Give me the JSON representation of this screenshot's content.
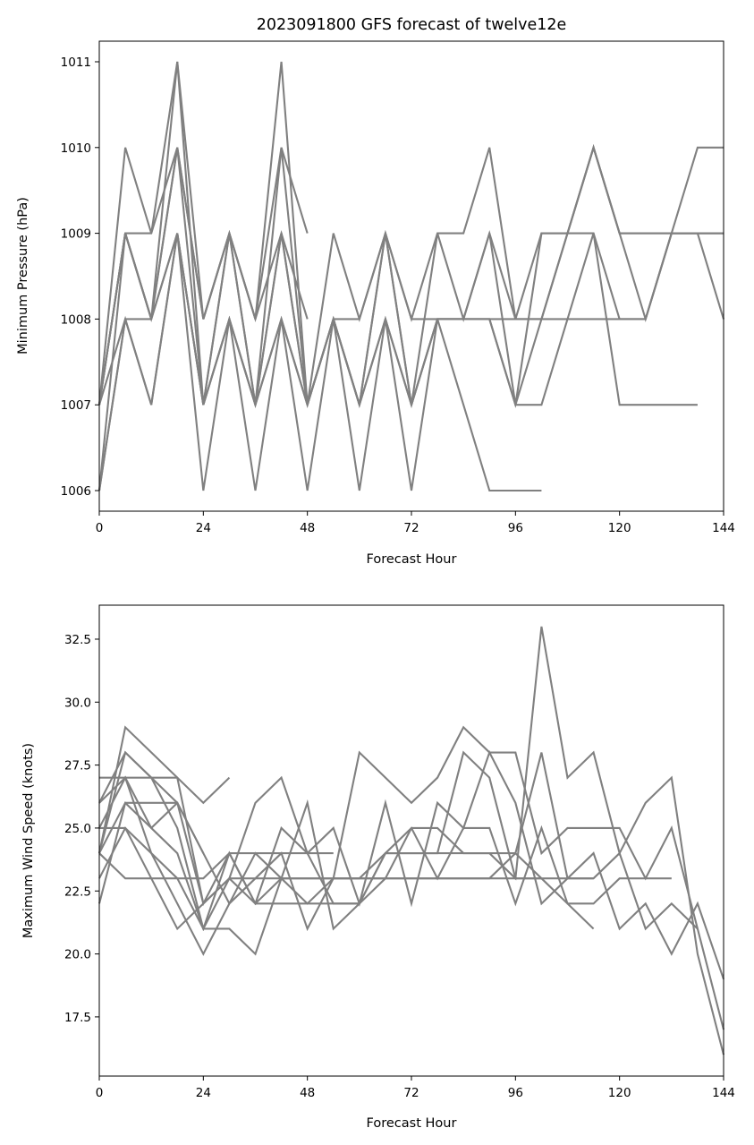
{
  "colors": {
    "series": "#808080",
    "axes": "#000000",
    "background": "#ffffff"
  },
  "chart_data": [
    {
      "type": "line",
      "title": "2023091800 GFS forecast of twelve12e",
      "xlabel": "Forecast Hour",
      "ylabel": "Minimum Pressure (hPa)",
      "xlim": [
        0,
        144
      ],
      "ylim": [
        1005.76,
        1011.24
      ],
      "xticks": [
        0,
        24,
        48,
        72,
        96,
        120,
        144
      ],
      "yticks": [
        1006,
        1007,
        1008,
        1009,
        1010,
        1011
      ],
      "ytick_labels": [
        "1006",
        "1007",
        "1008",
        "1009",
        "1010",
        "1011"
      ],
      "grid": false,
      "legend": false,
      "series": [
        {
          "x": [
            0,
            6,
            12,
            18,
            24,
            30,
            36,
            42,
            48,
            54,
            60,
            66,
            72,
            78,
            84,
            90,
            96,
            102,
            108,
            114,
            120,
            126,
            132,
            138,
            144
          ],
          "y": [
            1007,
            1010,
            1009,
            1011,
            1008,
            1009,
            1008,
            1011,
            1007,
            1008,
            1008,
            1009,
            1008,
            1008,
            1008,
            1008,
            1008,
            1008,
            1008,
            1008,
            1008,
            1008,
            1009,
            1010,
            1010
          ]
        },
        {
          "x": [
            0,
            6,
            12,
            18,
            24,
            30,
            36,
            42,
            48,
            54,
            60,
            66,
            72,
            78,
            84,
            90,
            96,
            102,
            108,
            114,
            120,
            126,
            132,
            138,
            144
          ],
          "y": [
            1007,
            1009,
            1009,
            1010,
            1008,
            1009,
            1008,
            1010,
            1007,
            1009,
            1008,
            1009,
            1008,
            1009,
            1009,
            1010,
            1008,
            1009,
            1009,
            1010,
            1009,
            1009,
            1009,
            1009,
            1009
          ]
        },
        {
          "x": [
            0,
            6,
            12,
            18,
            24,
            30,
            36,
            42,
            48
          ],
          "y": [
            1006,
            1009,
            1008,
            1011,
            1007,
            1009,
            1007,
            1010,
            1009
          ]
        },
        {
          "x": [
            0,
            6,
            12,
            18,
            24,
            30,
            36,
            42,
            48,
            54,
            60,
            66,
            72,
            78,
            84,
            90,
            96,
            102,
            108,
            114,
            120,
            126,
            132,
            138,
            144
          ],
          "y": [
            1007,
            1009,
            1008,
            1010,
            1007,
            1009,
            1007,
            1009,
            1007,
            1008,
            1007,
            1009,
            1007,
            1009,
            1008,
            1009,
            1007,
            1009,
            1009,
            1009,
            1008,
            1008,
            1009,
            1009,
            1008
          ]
        },
        {
          "x": [
            0,
            6,
            12,
            18,
            24,
            30,
            36,
            42,
            48,
            54,
            60,
            66,
            72,
            78,
            84,
            90,
            96,
            102,
            108,
            114,
            120,
            126,
            132,
            138
          ],
          "y": [
            1006,
            1008,
            1008,
            1009,
            1007,
            1008,
            1007,
            1009,
            1007,
            1008,
            1007,
            1009,
            1007,
            1008,
            1008,
            1008,
            1007,
            1007,
            1008,
            1009,
            1007,
            1007,
            1007,
            1007
          ]
        },
        {
          "x": [
            0,
            6,
            12,
            18,
            24,
            30,
            36,
            42,
            48,
            54,
            60,
            66,
            72,
            78,
            84,
            90,
            96,
            102
          ],
          "y": [
            1006,
            1008,
            1007,
            1009,
            1006,
            1008,
            1006,
            1008,
            1006,
            1008,
            1006,
            1008,
            1006,
            1008,
            1007,
            1006,
            1006,
            1006
          ]
        },
        {
          "x": [
            0,
            6,
            12,
            18,
            24,
            30,
            36,
            42,
            48,
            54,
            60,
            66,
            72,
            78,
            84,
            90,
            96,
            102,
            108,
            114,
            120,
            126,
            132,
            138,
            144
          ],
          "y": [
            1007,
            1009,
            1008,
            1009,
            1007,
            1008,
            1007,
            1008,
            1007,
            1008,
            1007,
            1008,
            1007,
            1008,
            1008,
            1008,
            1007,
            1008,
            1009,
            1010,
            1009,
            1008,
            1009,
            1009,
            1009
          ]
        },
        {
          "x": [
            0,
            6,
            12,
            18,
            24,
            30,
            36,
            42,
            48
          ],
          "y": [
            1007,
            1009,
            1008,
            1010,
            1008,
            1009,
            1008,
            1009,
            1008
          ]
        },
        {
          "x": [
            0,
            6,
            12,
            18,
            24,
            30,
            36,
            42,
            48,
            54,
            60,
            66,
            72,
            78,
            84,
            90,
            96,
            102,
            108,
            114,
            120,
            126,
            132,
            138,
            144
          ],
          "y": [
            1007,
            1008,
            1007,
            1009,
            1007,
            1008,
            1007,
            1008,
            1007,
            1008,
            1007,
            1008,
            1007,
            1008,
            1008,
            1009,
            1008,
            1008,
            1009,
            1010,
            1009,
            1009,
            1009,
            1009,
            1009
          ]
        }
      ]
    },
    {
      "type": "line",
      "title": "",
      "xlabel": "Forecast Hour",
      "ylabel": "Maximum Wind Speed (knots)",
      "xlim": [
        0,
        144
      ],
      "ylim": [
        15.15,
        33.85
      ],
      "xticks": [
        0,
        24,
        48,
        72,
        96,
        120,
        144
      ],
      "yticks": [
        17.5,
        20.0,
        22.5,
        25.0,
        27.5,
        30.0,
        32.5
      ],
      "ytick_labels": [
        "17.5",
        "20.0",
        "22.5",
        "25.0",
        "27.5",
        "30.0",
        "32.5"
      ],
      "grid": false,
      "legend": false,
      "series": [
        {
          "x": [
            0,
            6,
            12,
            18,
            24,
            30,
            36,
            42,
            48,
            54,
            60,
            66,
            72,
            78,
            84,
            90,
            96,
            102,
            108,
            114,
            120,
            126,
            132,
            138,
            144
          ],
          "y": [
            24,
            29,
            28,
            27,
            22,
            23,
            26,
            27,
            24,
            22,
            22,
            24,
            24,
            24,
            24,
            24,
            23,
            33,
            27,
            28,
            24,
            26,
            27,
            20,
            16
          ]
        },
        {
          "x": [
            0,
            6,
            12,
            18,
            24,
            30,
            36,
            42,
            48,
            54,
            60,
            66,
            72,
            78,
            84,
            90,
            96,
            102,
            108,
            114,
            120,
            126,
            132,
            138,
            144
          ],
          "y": [
            26,
            28,
            27,
            26,
            24,
            22,
            24,
            23,
            22,
            23,
            28,
            27,
            26,
            27,
            29,
            28,
            28,
            24,
            25,
            25,
            25,
            23,
            25,
            21,
            17
          ]
        },
        {
          "x": [
            0,
            6,
            12,
            18,
            24,
            30,
            36,
            42,
            48,
            54,
            60,
            66,
            72,
            78,
            84,
            90,
            96,
            102,
            108,
            114,
            120,
            126,
            132,
            138,
            144
          ],
          "y": [
            25,
            27,
            25,
            24,
            21,
            23,
            22,
            25,
            24,
            25,
            22,
            26,
            22,
            26,
            25,
            28,
            26,
            22,
            23,
            24,
            21,
            22,
            20,
            22,
            19
          ]
        },
        {
          "x": [
            0,
            6,
            12,
            18,
            24,
            30
          ],
          "y": [
            27,
            27,
            27,
            27,
            26,
            27
          ]
        },
        {
          "x": [
            0,
            6,
            12,
            18,
            24,
            30,
            36,
            42,
            48,
            54,
            60,
            66,
            72,
            78,
            84,
            90,
            96,
            102,
            108,
            114,
            120,
            126,
            132,
            138
          ],
          "y": [
            22,
            26,
            26,
            26,
            22,
            24,
            22,
            22,
            22,
            22,
            22,
            23,
            25,
            25,
            24,
            24,
            24,
            28,
            23,
            23,
            24,
            21,
            22,
            21
          ]
        },
        {
          "x": [
            0,
            6,
            12,
            18,
            24,
            30,
            36,
            42,
            48,
            54,
            60,
            66,
            72,
            78,
            84,
            90,
            96,
            102,
            108,
            114
          ],
          "y": [
            23,
            25,
            24,
            22,
            20,
            22,
            23,
            24,
            21,
            23,
            23,
            24,
            25,
            23,
            25,
            25,
            22,
            25,
            22,
            21
          ]
        },
        {
          "x": [
            0,
            6,
            12,
            18,
            24,
            30,
            36,
            42,
            48,
            54
          ],
          "y": [
            24,
            23,
            23,
            23,
            23,
            24,
            24,
            24,
            24,
            24
          ]
        },
        {
          "x": [
            0,
            6,
            12,
            18,
            24,
            30,
            36,
            42,
            48,
            54,
            60,
            66,
            72,
            78,
            84,
            90,
            96,
            102,
            108,
            114,
            120,
            126,
            132
          ],
          "y": [
            24,
            28,
            27,
            25,
            21,
            21,
            20,
            23,
            23,
            23,
            23,
            23,
            23,
            23,
            23,
            23,
            24,
            23,
            22,
            22,
            23,
            23,
            23
          ]
        },
        {
          "x": [
            0,
            6,
            12,
            18,
            24,
            30,
            36,
            42,
            48,
            54,
            60,
            66,
            72,
            78,
            84,
            90,
            96,
            102,
            108,
            114
          ],
          "y": [
            25,
            25,
            23,
            21,
            22,
            23,
            23,
            23,
            23,
            23,
            23,
            23,
            23,
            23,
            23,
            23,
            23,
            23,
            23,
            23
          ]
        },
        {
          "x": [
            0,
            6,
            12,
            18,
            24,
            30,
            36,
            42,
            48,
            54,
            60,
            66,
            72,
            78,
            84,
            90,
            96,
            102
          ],
          "y": [
            26,
            27,
            24,
            23,
            21,
            24,
            22,
            23,
            26,
            21,
            22,
            24,
            24,
            24,
            28,
            27,
            23,
            23
          ]
        },
        {
          "x": [
            0,
            6,
            12,
            18,
            24
          ],
          "y": [
            24,
            26,
            25,
            26,
            24
          ]
        }
      ]
    }
  ]
}
